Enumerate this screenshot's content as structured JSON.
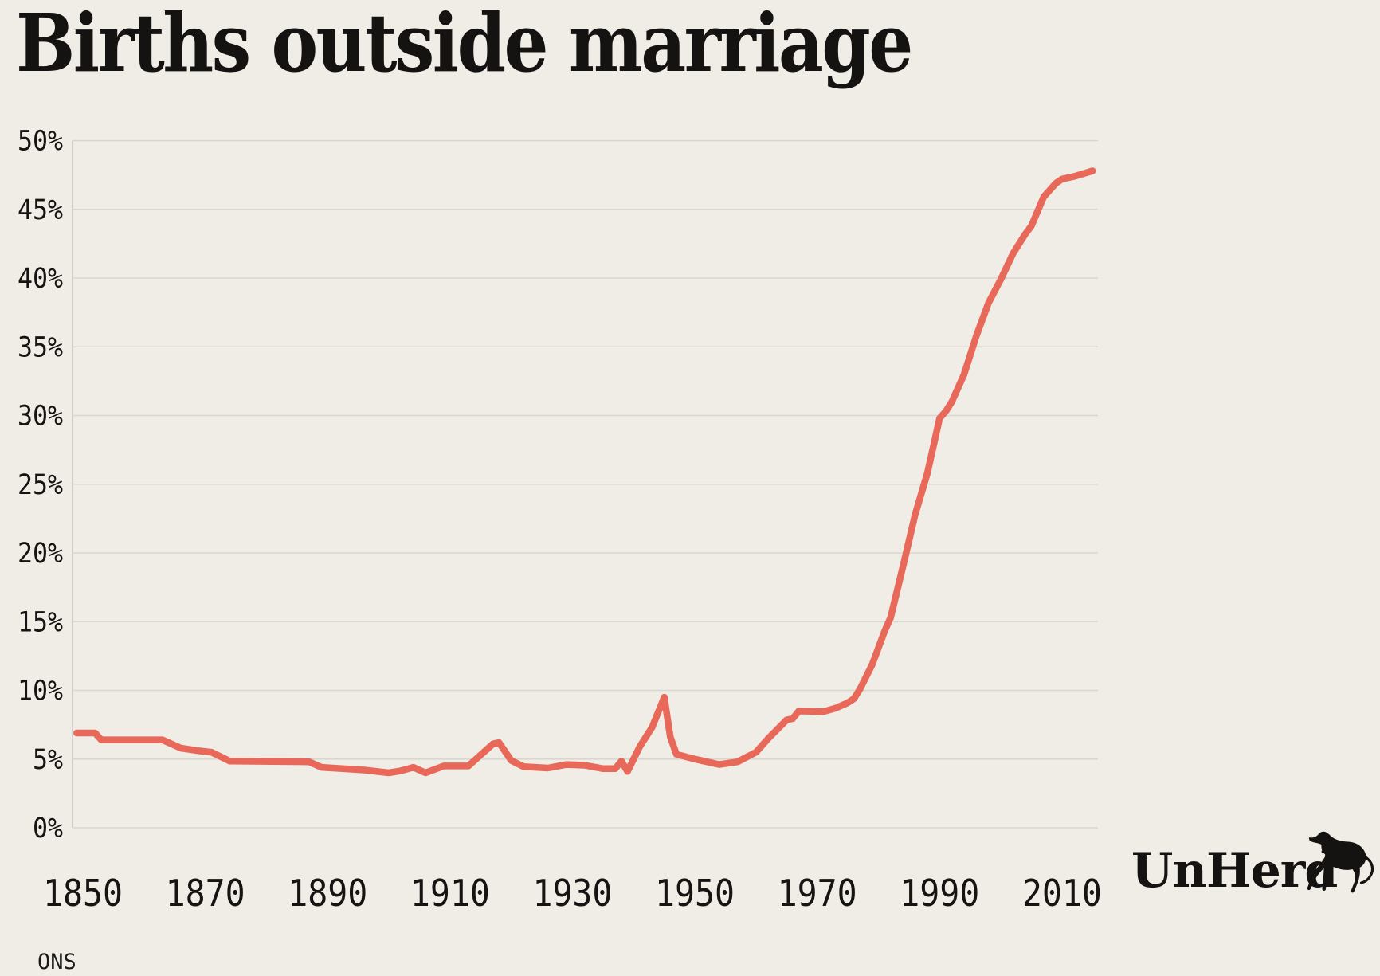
{
  "title": "Births outside marriage",
  "source": "ONS",
  "logo": {
    "text": "UnHerd"
  },
  "colors": {
    "background": "#F0EDE6",
    "line": "#E8695A",
    "grid": "#D9D5CF",
    "axis": "#D2CFC9",
    "text": "#161412"
  },
  "chart_data": {
    "type": "line",
    "title": "Births outside marriage",
    "xlabel": "",
    "ylabel": "",
    "x_ticks": [
      1850,
      1870,
      1890,
      1910,
      1930,
      1950,
      1970,
      1990,
      2010
    ],
    "y_ticks": [
      0,
      5,
      10,
      15,
      20,
      25,
      30,
      35,
      40,
      45,
      50
    ],
    "y_tick_suffix": "%",
    "xlim": [
      1848,
      2017
    ],
    "ylim": [
      0,
      50
    ],
    "grid": true,
    "legend_position": "none",
    "series": [
      {
        "name": "Share of births outside marriage (%)",
        "points": [
          [
            1849,
            6.9
          ],
          [
            1852,
            6.9
          ],
          [
            1853,
            6.4
          ],
          [
            1863,
            6.4
          ],
          [
            1866,
            5.8
          ],
          [
            1869,
            5.6
          ],
          [
            1871,
            5.5
          ],
          [
            1874,
            4.85
          ],
          [
            1887,
            4.8
          ],
          [
            1889,
            4.4
          ],
          [
            1896,
            4.2
          ],
          [
            1900,
            4.0
          ],
          [
            1902,
            4.15
          ],
          [
            1904,
            4.4
          ],
          [
            1906,
            4.0
          ],
          [
            1909,
            4.5
          ],
          [
            1913,
            4.5
          ],
          [
            1917,
            6.1
          ],
          [
            1918,
            6.2
          ],
          [
            1920,
            4.9
          ],
          [
            1922,
            4.45
          ],
          [
            1926,
            4.35
          ],
          [
            1929,
            4.6
          ],
          [
            1932,
            4.55
          ],
          [
            1935,
            4.3
          ],
          [
            1937,
            4.3
          ],
          [
            1938,
            4.85
          ],
          [
            1939,
            4.1
          ],
          [
            1941,
            5.9
          ],
          [
            1943,
            7.3
          ],
          [
            1945,
            9.5
          ],
          [
            1946,
            6.6
          ],
          [
            1947,
            5.35
          ],
          [
            1950,
            5.0
          ],
          [
            1952,
            4.8
          ],
          [
            1954,
            4.6
          ],
          [
            1957,
            4.8
          ],
          [
            1960,
            5.5
          ],
          [
            1962,
            6.5
          ],
          [
            1964,
            7.4
          ],
          [
            1965,
            7.85
          ],
          [
            1966,
            7.95
          ],
          [
            1967,
            8.5
          ],
          [
            1971,
            8.45
          ],
          [
            1973,
            8.7
          ],
          [
            1975,
            9.1
          ],
          [
            1976,
            9.4
          ],
          [
            1977,
            10.1
          ],
          [
            1979,
            11.9
          ],
          [
            1981,
            14.3
          ],
          [
            1982,
            15.3
          ],
          [
            1984,
            19.0
          ],
          [
            1986,
            22.8
          ],
          [
            1988,
            25.8
          ],
          [
            1990,
            29.8
          ],
          [
            1991,
            30.3
          ],
          [
            1992,
            31.0
          ],
          [
            1994,
            33.0
          ],
          [
            1996,
            35.8
          ],
          [
            1998,
            38.2
          ],
          [
            2000,
            39.9
          ],
          [
            2002,
            41.8
          ],
          [
            2004,
            43.2
          ],
          [
            2005,
            43.8
          ],
          [
            2007,
            45.9
          ],
          [
            2009,
            46.9
          ],
          [
            2010,
            47.2
          ],
          [
            2012,
            47.4
          ],
          [
            2015,
            47.8
          ]
        ]
      }
    ]
  }
}
